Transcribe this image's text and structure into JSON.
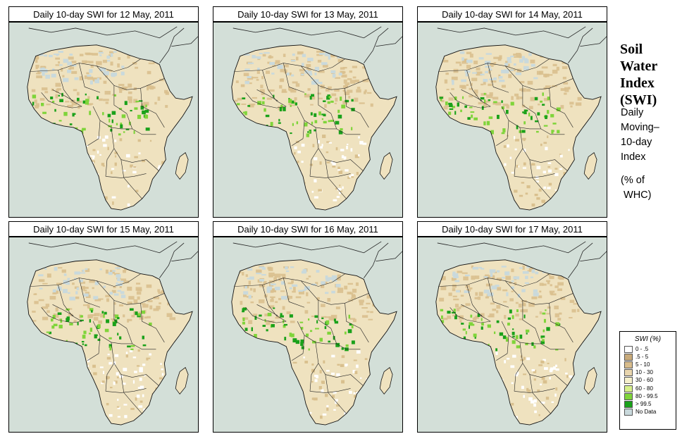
{
  "panels": [
    {
      "title": "Daily 10-day SWI for  12 May, 2011"
    },
    {
      "title": "Daily 10-day SWI for  13 May, 2011"
    },
    {
      "title": "Daily 10-day SWI for  14 May, 2011"
    },
    {
      "title": "Daily 10-day SWI for  15 May, 2011"
    },
    {
      "title": "Daily 10-day SWI for  16 May, 2011"
    },
    {
      "title": "Daily 10-day SWI for  17 May, 2011"
    }
  ],
  "side_title": {
    "line1": "Soil",
    "line2": "Water",
    "line3": "Index",
    "line4": "(SWI)"
  },
  "side_subtitle": {
    "line1": "Daily",
    "line2": "Moving–",
    "line3": "10-day",
    "line4": "Index",
    "line5": "(% of",
    "line6": " WHC)"
  },
  "legend": {
    "title": "SWI (%)",
    "entries": [
      {
        "label": "0 - .5",
        "color": "#ffffff"
      },
      {
        "label": ".5 - 5",
        "color": "#c8aa7a"
      },
      {
        "label": "5 - 10",
        "color": "#d8bc8c"
      },
      {
        "label": "10 - 30",
        "color": "#e9d6ae"
      },
      {
        "label": "30 - 60",
        "color": "#f6f0cc"
      },
      {
        "label": "60 - 80",
        "color": "#d7f08a"
      },
      {
        "label": "80 - 99.5",
        "color": "#7fd43a"
      },
      {
        "label": "> 99.5",
        "color": "#1aa11a"
      },
      {
        "label": "No Data",
        "color": "#c9d9dc"
      }
    ]
  },
  "colors": {
    "sea": "#d3dfd8",
    "land": "#efe2bf",
    "desert": "#d9c08e",
    "wet": "#7fd43a",
    "very_wet": "#1aa11a",
    "nodata": "#c9d9dc"
  }
}
